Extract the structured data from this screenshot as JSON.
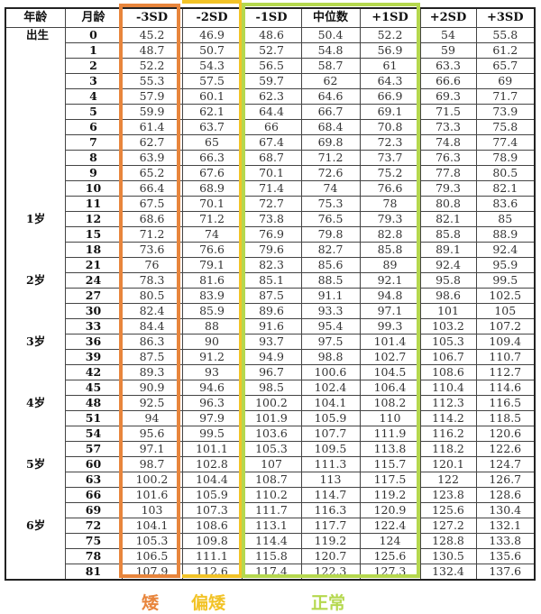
{
  "headers": [
    "年龄",
    "月龄",
    "-3SD",
    "-2SD",
    "-1SD",
    "中位数",
    "+1SD",
    "+2SD",
    "+3SD"
  ],
  "rows": [
    [
      "出生",
      "0",
      "45.2",
      "46.9",
      "48.6",
      "50.4",
      "52.2",
      "54",
      "55.8"
    ],
    [
      "",
      "1",
      "48.7",
      "50.7",
      "52.7",
      "54.8",
      "56.9",
      "59",
      "61.2"
    ],
    [
      "",
      "2",
      "52.2",
      "54.3",
      "56.5",
      "58.7",
      "61",
      "63.3",
      "65.7"
    ],
    [
      "",
      "3",
      "55.3",
      "57.5",
      "59.7",
      "62",
      "64.3",
      "66.6",
      "69"
    ],
    [
      "",
      "4",
      "57.9",
      "60.1",
      "62.3",
      "64.6",
      "66.9",
      "69.3",
      "71.7"
    ],
    [
      "",
      "5",
      "59.9",
      "62.1",
      "64.4",
      "66.7",
      "69.1",
      "71.5",
      "73.9"
    ],
    [
      "",
      "6",
      "61.4",
      "63.7",
      "66",
      "68.4",
      "70.8",
      "73.3",
      "75.8"
    ],
    [
      "",
      "7",
      "62.7",
      "65",
      "67.4",
      "69.8",
      "72.3",
      "74.8",
      "77.4"
    ],
    [
      "",
      "8",
      "63.9",
      "66.3",
      "68.7",
      "71.2",
      "73.7",
      "76.3",
      "78.9"
    ],
    [
      "",
      "9",
      "65.2",
      "67.6",
      "70.1",
      "72.6",
      "75.2",
      "77.8",
      "80.5"
    ],
    [
      "",
      "10",
      "66.4",
      "68.9",
      "71.4",
      "74",
      "76.6",
      "79.3",
      "82.1"
    ],
    [
      "",
      "11",
      "67.5",
      "70.1",
      "72.7",
      "75.3",
      "78",
      "80.8",
      "83.6"
    ],
    [
      "1岁",
      "12",
      "68.6",
      "71.2",
      "73.8",
      "76.5",
      "79.3",
      "82.1",
      "85"
    ],
    [
      "",
      "15",
      "71.2",
      "74",
      "76.9",
      "79.8",
      "82.8",
      "85.8",
      "88.9"
    ],
    [
      "",
      "18",
      "73.6",
      "76.6",
      "79.6",
      "82.7",
      "85.8",
      "89.1",
      "92.4"
    ],
    [
      "",
      "21",
      "76",
      "79.1",
      "82.3",
      "85.6",
      "89",
      "92.4",
      "95.9"
    ],
    [
      "2岁",
      "24",
      "78.3",
      "81.6",
      "85.1",
      "88.5",
      "92.1",
      "95.8",
      "99.5"
    ],
    [
      "",
      "27",
      "80.5",
      "83.9",
      "87.5",
      "91.1",
      "94.8",
      "98.6",
      "102.5"
    ],
    [
      "",
      "30",
      "82.4",
      "85.9",
      "89.6",
      "93.3",
      "97.1",
      "101",
      "105"
    ],
    [
      "",
      "33",
      "84.4",
      "88",
      "91.6",
      "95.4",
      "99.3",
      "103.2",
      "107.2"
    ],
    [
      "3岁",
      "36",
      "86.3",
      "90",
      "93.7",
      "97.5",
      "101.4",
      "105.3",
      "109.4"
    ],
    [
      "",
      "39",
      "87.5",
      "91.2",
      "94.9",
      "98.8",
      "102.7",
      "106.7",
      "110.7"
    ],
    [
      "",
      "42",
      "89.3",
      "93",
      "96.7",
      "100.6",
      "104.5",
      "108.6",
      "112.7"
    ],
    [
      "",
      "45",
      "90.9",
      "94.6",
      "98.5",
      "102.4",
      "106.4",
      "110.4",
      "114.6"
    ],
    [
      "4岁",
      "48",
      "92.5",
      "96.3",
      "100.2",
      "104.1",
      "108.2",
      "112.3",
      "116.5"
    ],
    [
      "",
      "51",
      "94",
      "97.9",
      "101.9",
      "105.9",
      "110",
      "114.2",
      "118.5"
    ],
    [
      "",
      "54",
      "95.6",
      "99.5",
      "103.6",
      "107.7",
      "111.9",
      "116.2",
      "120.6"
    ],
    [
      "",
      "57",
      "97.1",
      "101.1",
      "105.3",
      "109.5",
      "113.8",
      "118.2",
      "122.6"
    ],
    [
      "5岁",
      "60",
      "98.7",
      "102.8",
      "107",
      "111.3",
      "115.7",
      "120.1",
      "124.7"
    ],
    [
      "",
      "63",
      "100.2",
      "104.4",
      "108.7",
      "113",
      "117.5",
      "122",
      "126.7"
    ],
    [
      "",
      "66",
      "101.6",
      "105.9",
      "110.2",
      "114.7",
      "119.2",
      "123.8",
      "128.6"
    ],
    [
      "",
      "69",
      "103",
      "107.3",
      "111.7",
      "116.3",
      "120.9",
      "125.6",
      "130.4"
    ],
    [
      "6岁",
      "72",
      "104.1",
      "108.6",
      "113.1",
      "117.7",
      "122.4",
      "127.2",
      "132.1"
    ],
    [
      "",
      "75",
      "105.3",
      "109.8",
      "114.4",
      "119.2",
      "124",
      "128.8",
      "133.8"
    ],
    [
      "",
      "78",
      "106.5",
      "111.1",
      "115.8",
      "120.7",
      "125.6",
      "130.5",
      "135.6"
    ],
    [
      "",
      "81",
      "107.9",
      "112.6",
      "117.4",
      "122.3",
      "127.3",
      "132.4",
      "137.6"
    ]
  ],
  "legend": {
    "short": "矮",
    "below_avg": "偏矮",
    "normal": "正常"
  },
  "colors": {
    "short": "#e8853c",
    "below_avg": "#f2c327",
    "normal": "#b5d84e"
  }
}
